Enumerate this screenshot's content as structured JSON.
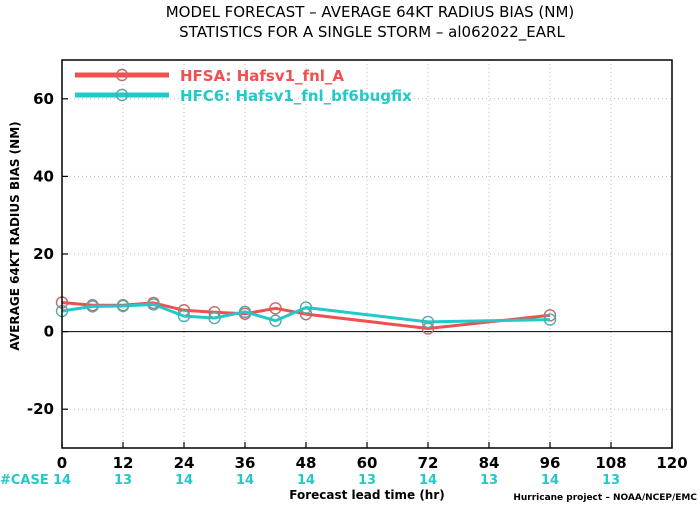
{
  "chart_data": {
    "type": "line",
    "title": "MODEL FORECAST – AVERAGE 64KT RADIUS BIAS (NM)",
    "subtitle": "STATISTICS FOR A SINGLE STORM – al062022_EARL",
    "xlabel": "Forecast lead time (hr)",
    "ylabel": "AVERAGE 64KT RADIUS BIAS (NM)",
    "xlim": [
      0,
      120
    ],
    "ylim": [
      -30,
      70
    ],
    "x_ticks": [
      0,
      12,
      24,
      36,
      48,
      60,
      72,
      84,
      96,
      108,
      120
    ],
    "y_ticks": [
      -20,
      0,
      20,
      40,
      60
    ],
    "x_grid_ticks": [
      12,
      24,
      36,
      48,
      60,
      72,
      84,
      96,
      108
    ],
    "y_grid_ticks": [
      -20,
      20,
      40,
      60
    ],
    "zero_line": true,
    "grid": true,
    "legend_position": "top-left",
    "series": [
      {
        "name": "HFSA: Hafsv1_fnl_A",
        "color": "#f05050",
        "x": [
          0,
          6,
          12,
          18,
          24,
          30,
          36,
          42,
          48,
          72,
          96
        ],
        "y": [
          7.5,
          6.8,
          6.8,
          7.4,
          5.5,
          5.0,
          4.6,
          6.0,
          4.5,
          0.8,
          4.2
        ]
      },
      {
        "name": "HFC6: Hafsv1_fnl_bf6bugfix",
        "color": "#22c9c9",
        "x": [
          0,
          6,
          12,
          18,
          24,
          30,
          36,
          42,
          48,
          72,
          96
        ],
        "y": [
          5.3,
          6.5,
          6.6,
          7.0,
          4.0,
          3.5,
          5.1,
          2.8,
          6.2,
          2.5,
          3.1
        ]
      }
    ],
    "case_label": "#CASE",
    "case_label_color": "#22c9c9",
    "case_counts": [
      {
        "x": 0,
        "n": "14"
      },
      {
        "x": 12,
        "n": "13"
      },
      {
        "x": 24,
        "n": "14"
      },
      {
        "x": 36,
        "n": "14"
      },
      {
        "x": 48,
        "n": "14"
      },
      {
        "x": 60,
        "n": "13"
      },
      {
        "x": 72,
        "n": "14"
      },
      {
        "x": 84,
        "n": "13"
      },
      {
        "x": 96,
        "n": "14"
      },
      {
        "x": 108,
        "n": "13"
      }
    ],
    "credit": "Hurricane project – NOAA/NCEP/EMC"
  }
}
